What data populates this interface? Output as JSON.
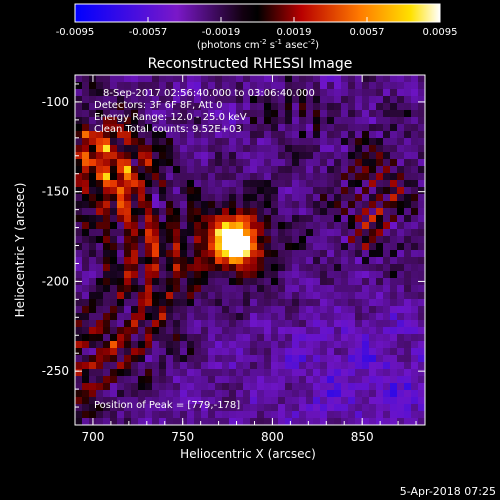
{
  "colorbar": {
    "ticks": [
      "-0.0095",
      "-0.0057",
      "-0.0019",
      "0.0019",
      "0.0057",
      "0.0095"
    ],
    "units_prefix": "(photons cm",
    "units_exp1": "-2",
    "units_mid": " s",
    "units_exp2": "-1",
    "units_mid2": " asec",
    "units_exp3": "-2",
    "units_suffix": ")"
  },
  "image": {
    "title": "Reconstructed RHESSI Image",
    "info_lines": [
      "8-Sep-2017 02:56:40.000 to 03:06:40.000",
      "Detectors: 3F 6F 8F, Att 0",
      "Energy Range: 12.0 - 25.0 keV",
      "Clean     Total counts: 9.52E+03"
    ],
    "peak_label": "Position of Peak = [779,-178]",
    "xlabel": "Heliocentric X (arcsec)",
    "ylabel": "Heliocentric Y (arcsec)",
    "x_ticks": [
      700,
      750,
      800,
      850
    ],
    "y_ticks": [
      -100,
      -150,
      -200,
      -250
    ],
    "x_range": [
      690,
      885
    ],
    "y_range": [
      -85,
      -280
    ],
    "peak": [
      779,
      -178
    ]
  },
  "footer": {
    "date": "5-Apr-2018 07:25"
  },
  "colors": {
    "background": "#000000",
    "colormap": [
      "#0000ff",
      "#6a0dad",
      "#000000",
      "#cc0000",
      "#ff8800",
      "#ffff00",
      "#ffffff"
    ]
  }
}
